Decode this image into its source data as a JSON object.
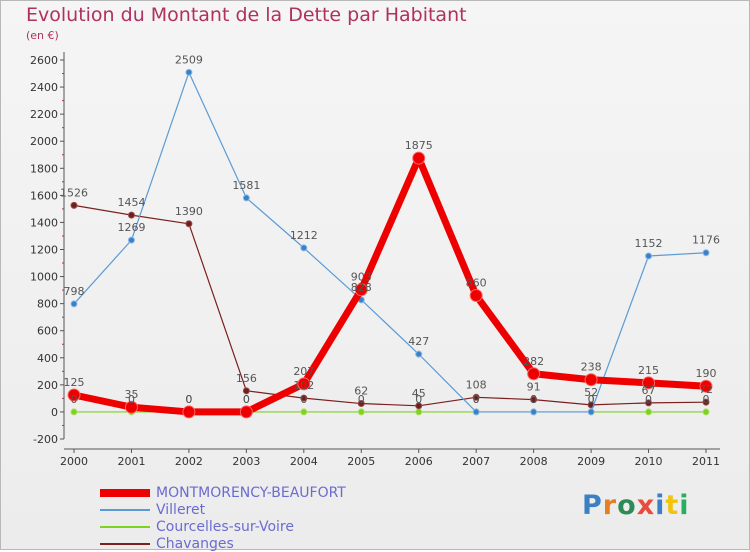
{
  "header": {
    "title": "Evolution du Montant de la Dette par Habitant",
    "subtitle": "(en €)"
  },
  "logo": {
    "text": "Proxiti",
    "colors": [
      "#3b7fc4",
      "#e67e22",
      "#2e8b57",
      "#e74c3c",
      "#3b7fc4",
      "#f1c40f",
      "#27ae60"
    ]
  },
  "chart_data": {
    "type": "line",
    "title": "Evolution du Montant de la Dette par Habitant",
    "ylabel": "(en €)",
    "xlabel": "",
    "ylim": [
      -200,
      2600
    ],
    "yticks": [
      -200,
      0,
      200,
      400,
      600,
      800,
      1000,
      1200,
      1400,
      1600,
      1800,
      2000,
      2200,
      2400,
      2600
    ],
    "grid": false,
    "legend_position": "bottom",
    "x": [
      "2000",
      "2001",
      "2002",
      "2003",
      "2004",
      "2005",
      "2006",
      "2007",
      "2008",
      "2009",
      "2010",
      "2011"
    ],
    "series": [
      {
        "name": "MONTMORENCY-BEAUFORT",
        "color": "#ee0000",
        "values": [
          125,
          35,
          0,
          0,
          207,
          903,
          1875,
          860,
          282,
          238,
          215,
          190
        ]
      },
      {
        "name": "Villeret",
        "color": "#5b9bd5",
        "values": [
          798,
          1269,
          2509,
          1581,
          1212,
          828,
          427,
          0,
          0,
          0,
          1152,
          1176
        ]
      },
      {
        "name": "Courcelles-sur-Voire",
        "color": "#7ed321",
        "values": [
          0,
          0,
          0,
          0,
          0,
          0,
          0,
          0,
          0,
          0,
          0,
          0
        ]
      },
      {
        "name": "Chavanges",
        "color": "#7b1f1f",
        "values": [
          1526,
          1454,
          1390,
          156,
          102,
          62,
          45,
          108,
          91,
          52,
          67,
          72
        ]
      }
    ]
  }
}
